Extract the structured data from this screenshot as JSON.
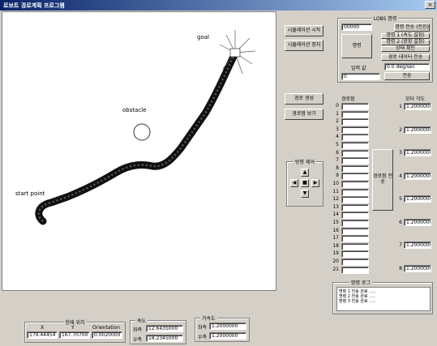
{
  "window": {
    "title": "로보트 경로계획 프로그램",
    "close_glyph": "×"
  },
  "canvas": {
    "goal_label": "goal",
    "obstacle_label": "obstacle",
    "start_label": "start point"
  },
  "top_buttons": {
    "btn1": "시뮬레이션 시작",
    "btn2": "시뮬레이션 정지"
  },
  "cmd_group": {
    "title": "LOBS 명령",
    "field1": "00000",
    "btn_right1": "명령 전송 (전진)",
    "btn_big": "명령",
    "btn_stack1": "명령 1 (속도 설정)",
    "btn_stack2": "명령 2 (방향 설정)",
    "btn_stack3": "상태 확인",
    "btn_stack4": "경로 데이터 전송",
    "input_label": "입력 값",
    "input_value": "0.0 deg/sec",
    "field_bottom": "0",
    "btn_bottom": "전송"
  },
  "mid_buttons": {
    "btn1": "경로 생성",
    "btn2": "경로점 보기"
  },
  "dir_group": {
    "title": "방향 제어",
    "up": "▲",
    "left": "◀",
    "center": "■",
    "right": "▶",
    "down": "▼"
  },
  "path_list": {
    "header": "경로점",
    "rows": [
      "0",
      "1",
      "2",
      "3",
      "4",
      "5",
      "6",
      "7",
      "8",
      "9",
      "10",
      "11",
      "12",
      "13",
      "14",
      "15",
      "16",
      "17",
      "18",
      "19",
      "20",
      "21"
    ],
    "values": [
      "",
      "",
      "",
      "",
      "",
      "",
      "",
      "",
      "",
      "",
      "",
      "",
      "",
      "",
      "",
      "",
      "",
      "",
      "",
      "",
      "",
      ""
    ]
  },
  "send_button": "경로점 전송",
  "motor_group": {
    "header": "모터 각도",
    "rows": [
      {
        "idx": "1",
        "value": "1.2000000"
      },
      {
        "idx": "2",
        "value": "1.2000000"
      },
      {
        "idx": "3",
        "value": "1.2000000"
      },
      {
        "idx": "4",
        "value": "1.2000000"
      },
      {
        "idx": "5",
        "value": "1.2000000"
      },
      {
        "idx": "6",
        "value": "1.2000000"
      },
      {
        "idx": "7",
        "value": "1.2000000"
      },
      {
        "idx": "8",
        "value": "1.2000000"
      }
    ]
  },
  "log_group": {
    "title": "명령 로그",
    "lines": [
      "명령 1 전송 완료 .....",
      "명령 2 전송 완료 .....",
      "명령 3 전송 완료 ....."
    ]
  },
  "pos_group": {
    "title": "현재 위치",
    "col_x": "X",
    "col_y": "Y",
    "col_orient": "Orientation",
    "x": "179.44454",
    "y": "167.70700",
    "orientation": "0.0020000"
  },
  "speed_group": {
    "title": "속도",
    "l_label": "좌측",
    "l_value": "12.6435000",
    "r_label": "우측",
    "r_value": "18.2345000"
  },
  "accel_group": {
    "title": "가속도",
    "l_label": "좌측",
    "l_value": "1.2000000",
    "r_label": "우측",
    "r_value": "1.2000000"
  },
  "colors": {
    "path": "#111111",
    "titlebar_start": "#0a246a",
    "titlebar_end": "#a6caf0"
  }
}
